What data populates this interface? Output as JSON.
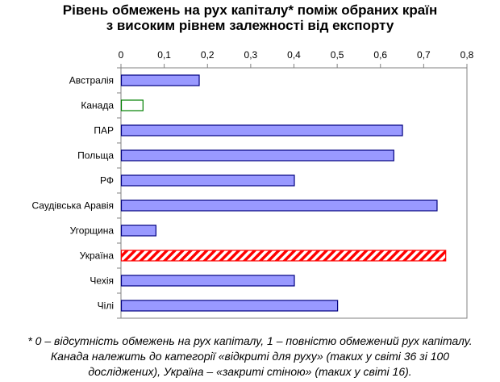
{
  "chart_data": {
    "type": "bar",
    "orientation": "horizontal",
    "title_line1": "Рівень обмежень на рух капіталу* поміж обраних країн",
    "title_line2": "з високим рівнем залежності від експорту",
    "xlim": [
      0,
      0.8
    ],
    "x_ticks": [
      "0",
      "0,1",
      "0,2",
      "0,3",
      "0,4",
      "0,5",
      "0,6",
      "0,7",
      "0,8"
    ],
    "x_tick_values": [
      0,
      0.1,
      0.2,
      0.3,
      0.4,
      0.5,
      0.6,
      0.7,
      0.8
    ],
    "categories": [
      "Австралія",
      "Канада",
      "ПАР",
      "Польща",
      "РФ",
      "Саудівська Аравія",
      "Угорщина",
      "Україна",
      "Чехія",
      "Чілі"
    ],
    "values": [
      0.18,
      0.05,
      0.65,
      0.63,
      0.4,
      0.73,
      0.08,
      0.75,
      0.4,
      0.5
    ],
    "styles": [
      "default",
      "outline",
      "default",
      "default",
      "default",
      "default",
      "default",
      "hatched",
      "default",
      "default"
    ],
    "grid": false,
    "legend": "none"
  },
  "colors": {
    "bar_fill": "#9999ff",
    "bar_stroke": "#000080",
    "canada_stroke": "#008000",
    "ukraine_stripe": "#ff0000",
    "axis": "#808080"
  },
  "footnote": {
    "line1": "* 0 – відсутність обмежень на рух капіталу, 1 – повністю обмежений рух капіталу.",
    "line2": "Канада належить до категорії «відкриті для руху» (таких у світі 36 зі 100",
    "line3": "досліджених), Україна – «закриті стіною» (таких у світі 16)."
  }
}
